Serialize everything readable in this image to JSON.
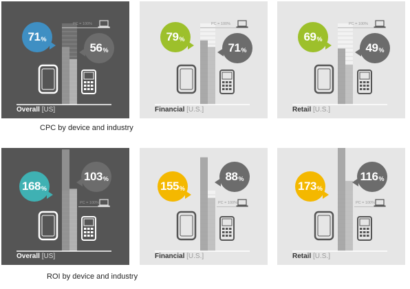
{
  "captions": {
    "cpc": "CPC by device and industry",
    "roi": "ROI by device and industry"
  },
  "pc_label": "PC = 100%",
  "colors": {
    "dark_panel": "#555555",
    "light_panel": "#e6e6e6",
    "blue": "#3f8fc3",
    "green": "#9dc02b",
    "teal": "#3fb1b3",
    "yellow": "#f4b800",
    "gray_bubble": "#6c6c6c"
  },
  "chart_data": [
    {
      "type": "bar",
      "group": "CPC by device and industry",
      "panel": "Overall",
      "region": "[US]",
      "categories": [
        "Tablet",
        "PC",
        "Smartphone"
      ],
      "values": [
        71,
        100,
        56
      ],
      "unit": "%"
    },
    {
      "type": "bar",
      "group": "CPC by device and industry",
      "panel": "Financial",
      "region": "[U.S.]",
      "categories": [
        "Tablet",
        "PC",
        "Smartphone"
      ],
      "values": [
        79,
        100,
        71
      ],
      "unit": "%"
    },
    {
      "type": "bar",
      "group": "CPC by device and industry",
      "panel": "Retail",
      "region": "[U.S.]",
      "categories": [
        "Tablet",
        "PC",
        "Smartphone"
      ],
      "values": [
        69,
        100,
        49
      ],
      "unit": "%"
    },
    {
      "type": "bar",
      "group": "ROI by device and industry",
      "panel": "Overall",
      "region": "[US]",
      "categories": [
        "Tablet",
        "PC",
        "Smartphone"
      ],
      "values": [
        168,
        100,
        103
      ],
      "unit": "%"
    },
    {
      "type": "bar",
      "group": "ROI by device and industry",
      "panel": "Financial",
      "region": "[U.S.]",
      "categories": [
        "Tablet",
        "PC",
        "Smartphone"
      ],
      "values": [
        155,
        100,
        88
      ],
      "unit": "%"
    },
    {
      "type": "bar",
      "group": "ROI by device and industry",
      "panel": "Retail",
      "region": "[U.S.]",
      "categories": [
        "Tablet",
        "PC",
        "Smartphone"
      ],
      "values": [
        173,
        100,
        116
      ],
      "unit": "%"
    }
  ],
  "labels": [
    {
      "tablet": "71",
      "phone": "56",
      "pct": "%",
      "name": "Overall",
      "region": "[US]"
    },
    {
      "tablet": "79",
      "phone": "71",
      "pct": "%",
      "name": "Financial",
      "region": "[U.S.]"
    },
    {
      "tablet": "69",
      "phone": "49",
      "pct": "%",
      "name": "Retail",
      "region": "[U.S.]"
    },
    {
      "tablet": "168",
      "phone": "103",
      "pct": "%",
      "name": "Overall",
      "region": "[US]"
    },
    {
      "tablet": "155",
      "phone": "88",
      "pct": "%",
      "name": "Financial",
      "region": "[U.S.]"
    },
    {
      "tablet": "173",
      "phone": "116",
      "pct": "%",
      "name": "Retail",
      "region": "[U.S.]"
    }
  ]
}
